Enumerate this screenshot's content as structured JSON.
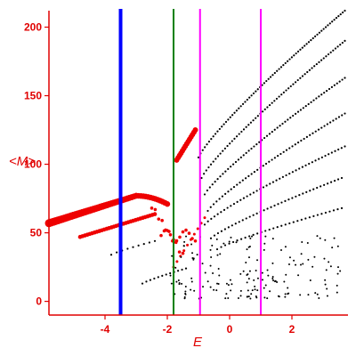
{
  "chart_data": {
    "type": "scatter",
    "xlabel": "E",
    "ylabel": "<M>",
    "xlim": [
      -5.8,
      3.8
    ],
    "ylim": [
      -10,
      212
    ],
    "x_ticks": [
      -4,
      -2,
      0,
      2
    ],
    "y_ticks": [
      0,
      50,
      100,
      150,
      200
    ],
    "grid": false,
    "colors": {
      "axis": "#e00000",
      "big_points": "#ee0000",
      "small_points": "#000000",
      "line_blue": "#0000ff",
      "line_green": "#008000",
      "line_magenta": "#ff00ff"
    },
    "vertical_lines": [
      {
        "x": -3.5,
        "color": "#0000ff",
        "width": 4
      },
      {
        "x": -1.8,
        "color": "#008000",
        "width": 2
      },
      {
        "x": -0.95,
        "color": "#ff00ff",
        "width": 2
      },
      {
        "x": 1.0,
        "color": "#ff00ff",
        "width": 2
      }
    ],
    "series": [
      {
        "color": "#ee0000",
        "size": 4.5,
        "x0": -5.8,
        "x1": -3.5,
        "n": 38,
        "curve": "upper"
      },
      {
        "color": "#ee0000",
        "size": 3.5,
        "x0": -3.5,
        "x1": -2.2,
        "n": 14,
        "curve": "upper"
      },
      {
        "color": "#ee0000",
        "size": 2.8,
        "x0": -4.8,
        "x1": -2.6,
        "n": 30,
        "curve": "lower"
      },
      {
        "color": "#000000",
        "size": 1.1,
        "x0": -3.8,
        "x1": -2.4,
        "n": 10,
        "curve": "lower"
      }
    ]
  }
}
